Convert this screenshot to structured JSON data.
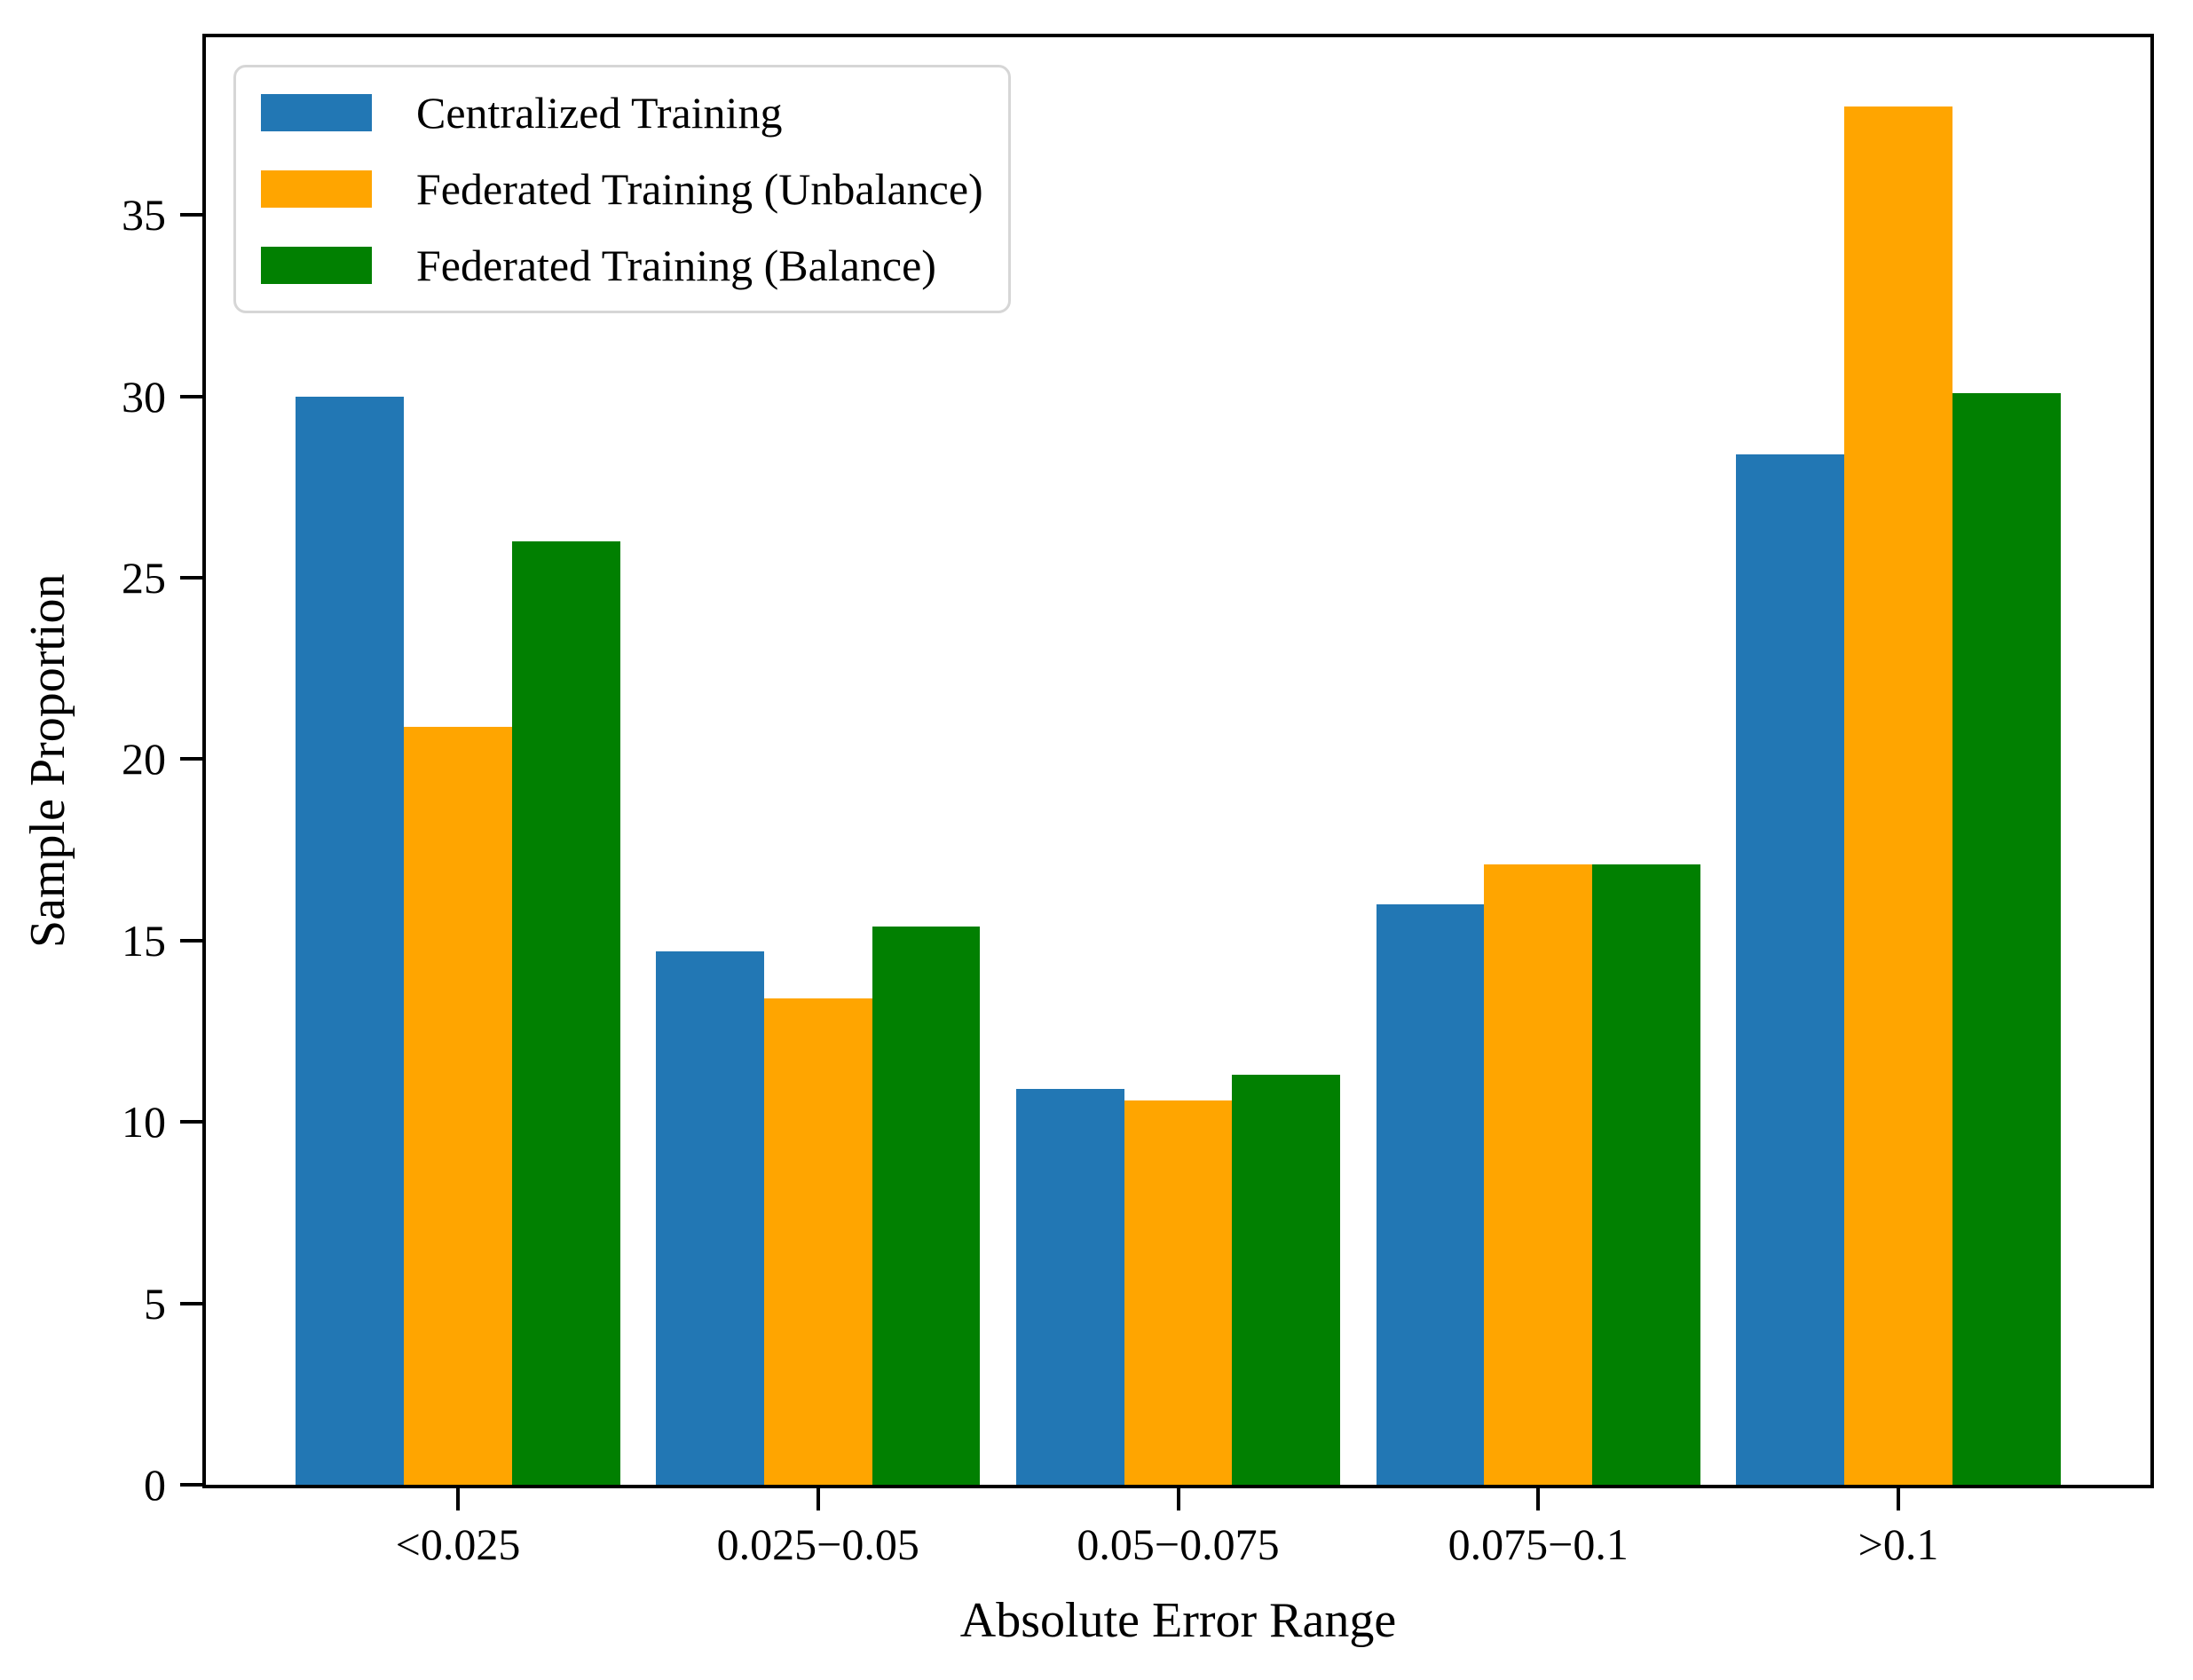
{
  "chart_data": {
    "type": "bar",
    "title": "",
    "xlabel": "Absolute Error Range",
    "ylabel": "Sample Proportion",
    "categories": [
      "<0.025",
      "0.025−0.05",
      "0.05−0.075",
      "0.075−0.1",
      ">0.1"
    ],
    "series": [
      {
        "name": "Centralized Training",
        "color": "#2277B4",
        "values": [
          30.0,
          14.7,
          10.9,
          16.0,
          28.4
        ]
      },
      {
        "name": "Federated Training (Unbalance)",
        "color": "#FFA500",
        "values": [
          20.9,
          13.4,
          10.6,
          17.1,
          38.0
        ]
      },
      {
        "name": "Federated Training (Balance)",
        "color": "#018001",
        "values": [
          26.0,
          15.4,
          11.3,
          17.1,
          30.1
        ]
      }
    ],
    "yticks": [
      0,
      5,
      10,
      15,
      20,
      25,
      30,
      35
    ],
    "ylim": [
      0,
      39.9
    ],
    "xlim": [
      -0.7,
      4.7
    ],
    "bar_width": 0.3,
    "grid": false,
    "legend_position": "upper-left",
    "frame_color": "#000000",
    "background_color": "#ffffff"
  }
}
